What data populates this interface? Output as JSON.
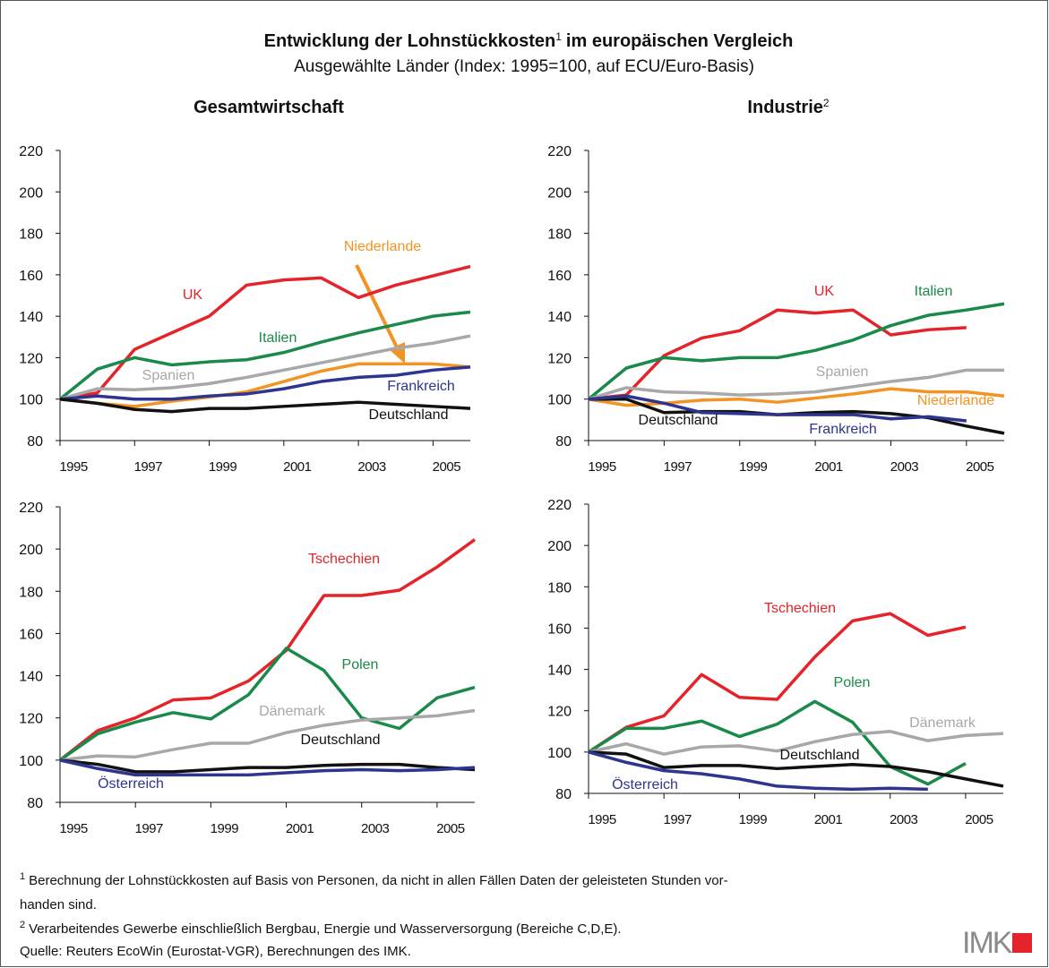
{
  "title": "Entwicklung der Lohnstückkosten",
  "title_note": "1",
  "title_rest": "im europäischen Vergleich",
  "subtitle": "Ausgewählte Länder (Index: 1995=100, auf ECU/Euro-Basis)",
  "footnotes": [
    {
      "mark": "1",
      "lines": [
        "Berechnung der Lohnstückkosten auf Basis von Personen, da nicht in allen Fällen Daten der geleisteten Stunden vor-",
        "handen sind."
      ]
    },
    {
      "mark": "2",
      "lines": [
        "Verarbeitendes Gewerbe einschließlich Bergbau, Energie und Wasserversorgung (Bereiche C,D,E)."
      ]
    }
  ],
  "source": "Quelle: Reuters EcoWin (Eurostat-VGR), Berechnungen des IMK.",
  "logo": "IMK",
  "chart_data": [
    {
      "type": "line",
      "title": "Gesamtwirtschaft",
      "x": [
        1995,
        1996,
        1997,
        1998,
        1999,
        2000,
        2001,
        2002,
        2003,
        2004,
        2005,
        2006
      ],
      "xlim": [
        1995,
        2006
      ],
      "xticks": [
        1995,
        1997,
        1999,
        2001,
        2003,
        2005
      ],
      "ylim": [
        80,
        220
      ],
      "yticks": [
        80,
        100,
        120,
        140,
        160,
        180,
        200,
        220
      ],
      "series": [
        {
          "name": "UK",
          "color": "#e4232b",
          "values": [
            100,
            103,
            124,
            132,
            140,
            155,
            157.5,
            158.5,
            149,
            155,
            159.5,
            164
          ]
        },
        {
          "name": "Italien",
          "color": "#1a8a4a",
          "values": [
            100,
            114.5,
            120,
            116.5,
            118,
            119,
            122.5,
            127.5,
            132,
            136,
            140,
            142
          ]
        },
        {
          "name": "Spanien",
          "color": "#a8a8a8",
          "values": [
            100,
            105,
            104.5,
            105.5,
            107.5,
            110.5,
            114,
            117.5,
            121,
            124.5,
            127,
            130.5
          ]
        },
        {
          "name": "Niederlande",
          "color": "#f39324",
          "values": [
            100,
            98,
            96.5,
            99,
            101,
            103.5,
            108.5,
            113.5,
            117,
            117,
            117,
            115.5
          ]
        },
        {
          "name": "Frankreich",
          "color": "#2e3591",
          "values": [
            100,
            101.5,
            100,
            100,
            101.5,
            102.5,
            105,
            108.5,
            110.5,
            111.5,
            114,
            115.5
          ]
        },
        {
          "name": "Deutschland",
          "color": "#111111",
          "values": [
            100,
            98,
            95,
            94,
            95.5,
            95.5,
            96.5,
            97.5,
            98.5,
            97.5,
            96.5,
            95.5
          ]
        }
      ]
    },
    {
      "type": "line",
      "title": "Industrie",
      "title_note": "2",
      "x": [
        1995,
        1996,
        1997,
        1998,
        1999,
        2000,
        2001,
        2002,
        2003,
        2004,
        2005,
        2006
      ],
      "xlim": [
        1995,
        2006
      ],
      "xticks": [
        1995,
        1997,
        1999,
        2001,
        2003,
        2005
      ],
      "ylim": [
        80,
        220
      ],
      "yticks": [
        80,
        100,
        120,
        140,
        160,
        180,
        200,
        220
      ],
      "series": [
        {
          "name": "UK",
          "color": "#e4232b",
          "values": [
            100,
            102,
            121,
            129.5,
            133,
            143,
            141.5,
            143,
            131,
            133.5,
            134.5,
            null
          ]
        },
        {
          "name": "Italien",
          "color": "#1a8a4a",
          "values": [
            100,
            115,
            120,
            118.5,
            120,
            120,
            123.5,
            128.5,
            135.5,
            140.5,
            143,
            146
          ]
        },
        {
          "name": "Spanien",
          "color": "#a8a8a8",
          "values": [
            100,
            105.5,
            103.5,
            103,
            102,
            102.5,
            103.5,
            106,
            108.5,
            110.5,
            114,
            114
          ]
        },
        {
          "name": "Niederlande",
          "color": "#f39324",
          "values": [
            100,
            97,
            98,
            99.5,
            100,
            98.5,
            100.5,
            102.5,
            105,
            103.5,
            103.5,
            101.5
          ]
        },
        {
          "name": "Deutschland",
          "color": "#111111",
          "values": [
            100,
            100,
            93.5,
            94,
            94,
            92.5,
            93.5,
            94,
            93,
            91,
            87,
            83.5
          ]
        },
        {
          "name": "Frankreich",
          "color": "#2e3591",
          "values": [
            100,
            101.5,
            98,
            93.5,
            93,
            92.5,
            92.5,
            92.5,
            90.5,
            91.5,
            89.5,
            null
          ]
        }
      ]
    },
    {
      "type": "line",
      "x": [
        1995,
        1996,
        1997,
        1998,
        1999,
        2000,
        2001,
        2002,
        2003,
        2004,
        2005,
        2006
      ],
      "xlim": [
        1995,
        2006
      ],
      "xticks": [
        1995,
        1997,
        1999,
        2001,
        2003,
        2005
      ],
      "ylim": [
        80,
        220
      ],
      "yticks": [
        80,
        100,
        120,
        140,
        160,
        180,
        200,
        220
      ],
      "series": [
        {
          "name": "Tschechien",
          "color": "#e4232b",
          "values": [
            100,
            114,
            120,
            128.5,
            129.5,
            137.5,
            152,
            178,
            178,
            180.5,
            191.5,
            204.5
          ]
        },
        {
          "name": "Polen",
          "color": "#1a8a4a",
          "values": [
            100,
            112.5,
            118,
            122.5,
            119.5,
            131,
            153,
            142.5,
            120,
            115,
            129.5,
            134.5
          ]
        },
        {
          "name": "Dänemark",
          "color": "#a8a8a8",
          "values": [
            100,
            102,
            101.5,
            105,
            108,
            108,
            113,
            116.5,
            119,
            120,
            121,
            123.5
          ]
        },
        {
          "name": "Deutschland",
          "color": "#111111",
          "values": [
            100,
            98,
            94.5,
            94.5,
            95.5,
            96.5,
            96.5,
            97.5,
            98,
            98,
            96.5,
            95.5
          ]
        },
        {
          "name": "Österreich",
          "color": "#2e3591",
          "values": [
            100,
            96,
            93,
            93,
            93,
            93,
            94,
            95,
            95.5,
            95,
            95.5,
            96.5
          ]
        }
      ]
    },
    {
      "type": "line",
      "x": [
        1995,
        1996,
        1997,
        1998,
        1999,
        2000,
        2001,
        2002,
        2003,
        2004,
        2005,
        2006
      ],
      "xlim": [
        1995,
        2006
      ],
      "xticks": [
        1995,
        1997,
        1999,
        2001,
        2003,
        2005
      ],
      "ylim": [
        80,
        220
      ],
      "yticks": [
        80,
        100,
        120,
        140,
        160,
        180,
        200,
        220
      ],
      "series": [
        {
          "name": "Tschechien",
          "color": "#e4232b",
          "values": [
            100,
            112,
            117.5,
            137.5,
            126.5,
            125.5,
            146,
            163.5,
            167,
            156.5,
            160.5,
            null
          ]
        },
        {
          "name": "Polen",
          "color": "#1a8a4a",
          "values": [
            100,
            111.5,
            111.5,
            115,
            107.5,
            113.5,
            124.5,
            114.5,
            93,
            84.5,
            94.5,
            null
          ]
        },
        {
          "name": "Dänemark",
          "color": "#a8a8a8",
          "values": [
            100,
            104,
            99,
            102.5,
            103,
            100.5,
            105,
            108.5,
            110,
            105.5,
            108,
            109
          ]
        },
        {
          "name": "Deutschland",
          "color": "#111111",
          "values": [
            100,
            99,
            92.5,
            93.5,
            93.5,
            92,
            93,
            94,
            93,
            90.5,
            87,
            83.5
          ]
        },
        {
          "name": "Österreich",
          "color": "#2e3591",
          "values": [
            100,
            95,
            91,
            89.5,
            87,
            83.5,
            82.5,
            82,
            82.5,
            82,
            null,
            null
          ]
        }
      ]
    }
  ]
}
